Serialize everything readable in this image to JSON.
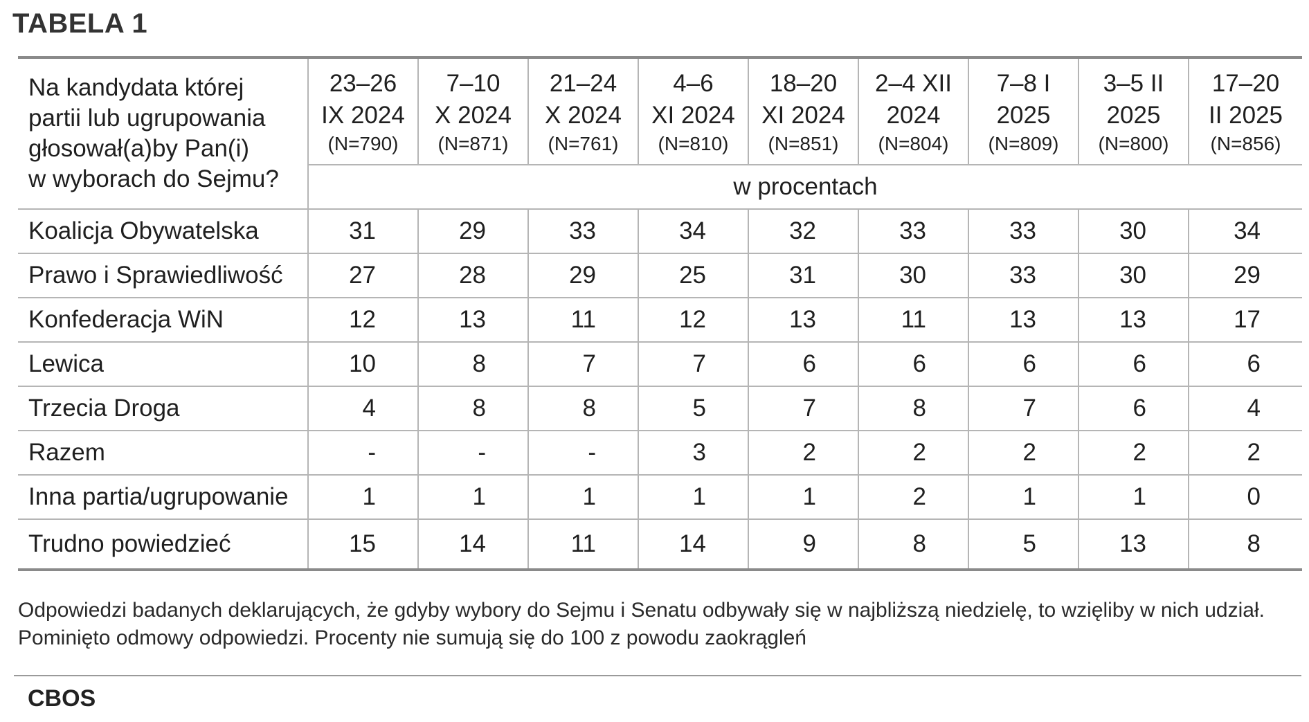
{
  "title": "TABELA 1",
  "question": [
    "Na kandydata której",
    "partii lub ugrupowania",
    "głosował(a)by Pan(i)",
    "w wyborach do Sejmu?"
  ],
  "columns": [
    {
      "date_line1": "23–26",
      "date_line2": "IX 2024",
      "n": "(N=790)"
    },
    {
      "date_line1": "7–10",
      "date_line2": "X 2024",
      "n": "(N=871)"
    },
    {
      "date_line1": "21–24",
      "date_line2": "X 2024",
      "n": "(N=761)"
    },
    {
      "date_line1": "4–6",
      "date_line2": "XI 2024",
      "n": "(N=810)"
    },
    {
      "date_line1": "18–20",
      "date_line2": "XI 2024",
      "n": "(N=851)"
    },
    {
      "date_line1": "2–4 XII",
      "date_line2": "2024",
      "n": "(N=804)"
    },
    {
      "date_line1": "7–8 I",
      "date_line2": "2025",
      "n": "(N=809)"
    },
    {
      "date_line1": "3–5 II",
      "date_line2": "2025",
      "n": "(N=800)"
    },
    {
      "date_line1": "17–20",
      "date_line2": "II 2025",
      "n": "(N=856)"
    }
  ],
  "unit_label": "w procentach",
  "rows": [
    {
      "party": "Koalicja Obywatelska",
      "values": [
        "31",
        "29",
        "33",
        "34",
        "32",
        "33",
        "33",
        "30",
        "34"
      ]
    },
    {
      "party": "Prawo i Sprawiedliwość",
      "values": [
        "27",
        "28",
        "29",
        "25",
        "31",
        "30",
        "33",
        "30",
        "29"
      ]
    },
    {
      "party": "Konfederacja WiN",
      "values": [
        "12",
        "13",
        "11",
        "12",
        "13",
        "11",
        "13",
        "13",
        "17"
      ]
    },
    {
      "party": "Lewica",
      "values": [
        "10",
        "8",
        "7",
        "7",
        "6",
        "6",
        "6",
        "6",
        "6"
      ]
    },
    {
      "party": "Trzecia Droga",
      "values": [
        "4",
        "8",
        "8",
        "5",
        "7",
        "8",
        "7",
        "6",
        "4"
      ]
    },
    {
      "party": "Razem",
      "values": [
        "-",
        "-",
        "-",
        "3",
        "2",
        "2",
        "2",
        "2",
        "2"
      ]
    },
    {
      "party": "Inna partia/ugrupowanie",
      "values": [
        "1",
        "1",
        "1",
        "1",
        "1",
        "2",
        "1",
        "1",
        "0"
      ]
    },
    {
      "party": "Trudno powiedzieć",
      "values": [
        "15",
        "14",
        "11",
        "14",
        "9",
        "8",
        "5",
        "13",
        "8"
      ]
    }
  ],
  "note": "Odpowiedzi badanych deklarujących, że gdyby wybory do Sejmu i Senatu odbywały się w najbliższą niedzielę, to wzięliby w nich udział. Pominięto odmowy odpowiedzi. Procenty nie sumują się do 100 z powodu zaokrągleń",
  "source": "CBOS"
}
